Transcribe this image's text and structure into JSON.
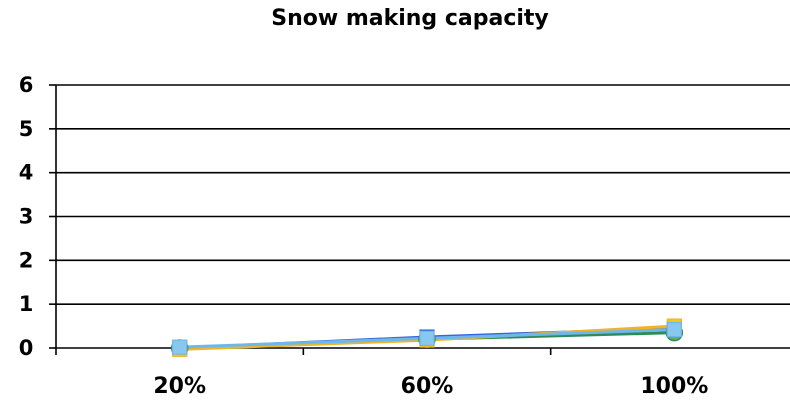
{
  "chart_data": {
    "type": "line",
    "title": "Snow making capacity",
    "categories": [
      "20%",
      "60%",
      "100%"
    ],
    "ylim": [
      0,
      6
    ],
    "yticks": [
      0,
      1,
      2,
      3,
      4,
      5,
      6
    ],
    "grid": true,
    "legend": "none",
    "xlabel": "",
    "ylabel": "",
    "series": [
      {
        "values": [
          0.0,
          0.2,
          0.35
        ],
        "color": "#2e8b57",
        "marker": "circle",
        "marker_fill": "#5fae6a"
      },
      {
        "values": [
          0.0,
          0.25,
          0.45
        ],
        "color": "#3366dd",
        "marker": "square",
        "marker_fill": "#3366dd"
      },
      {
        "values": [
          -0.03,
          0.18,
          0.5
        ],
        "color": "#f0b429",
        "marker": "square",
        "marker_fill": "#f5c518"
      },
      {
        "values": [
          0.02,
          0.22,
          0.42
        ],
        "color": "#6fb7e8",
        "marker": "square",
        "marker_fill": "#88c8f0"
      }
    ]
  }
}
